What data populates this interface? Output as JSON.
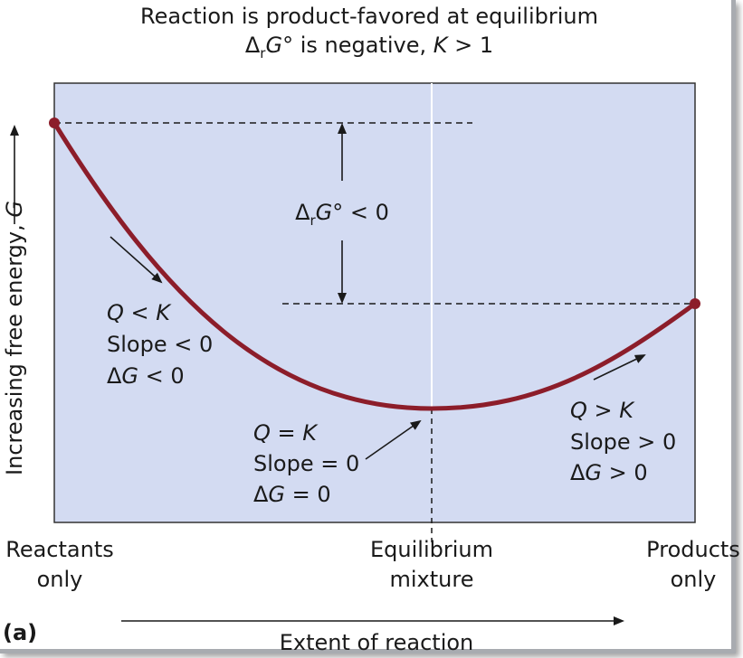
{
  "title": {
    "line1": "Reaction is product-favored at equilibrium",
    "line2_delta": "Δ",
    "line2_sub": "r",
    "line2_G": "G",
    "line2_rest": "° is negative, ",
    "line2_K": "K",
    "line2_end": " > 1"
  },
  "y_axis_label": {
    "text": "Increasing free energy, ",
    "var": "G"
  },
  "x_axis_label": "Extent of reaction",
  "panel_label": "(a)",
  "x_labels": {
    "reactants": [
      "Reactants",
      "only"
    ],
    "equilibrium": [
      "Equilibrium",
      "mixture"
    ],
    "products": [
      "Products",
      "only"
    ]
  },
  "delta_rG_label": {
    "delta": "Δ",
    "sub": "r",
    "G": "G",
    "rest": "° < 0"
  },
  "left_annotation": {
    "line1_var": "Q",
    "line1_rest": " < ",
    "line1_var2": "K",
    "line2": "Slope < 0",
    "line3_delta": "Δ",
    "line3_var": "G",
    "line3_rest": " < 0"
  },
  "middle_annotation": {
    "line1_var": "Q",
    "line1_rest": " = ",
    "line1_var2": "K",
    "line2": "Slope = 0",
    "line3_delta": "Δ",
    "line3_var": "G",
    "line3_rest": " = 0"
  },
  "right_annotation": {
    "line1_var": "Q",
    "line1_rest": " > ",
    "line1_var2": "K",
    "line2": "Slope > 0",
    "line3_delta": "Δ",
    "line3_var": "G",
    "line3_rest": " > 0"
  },
  "colors": {
    "plot_background": "#d3dbf2",
    "curve": "#8c1d2a",
    "frame_shadow": "#a8abb0"
  }
}
